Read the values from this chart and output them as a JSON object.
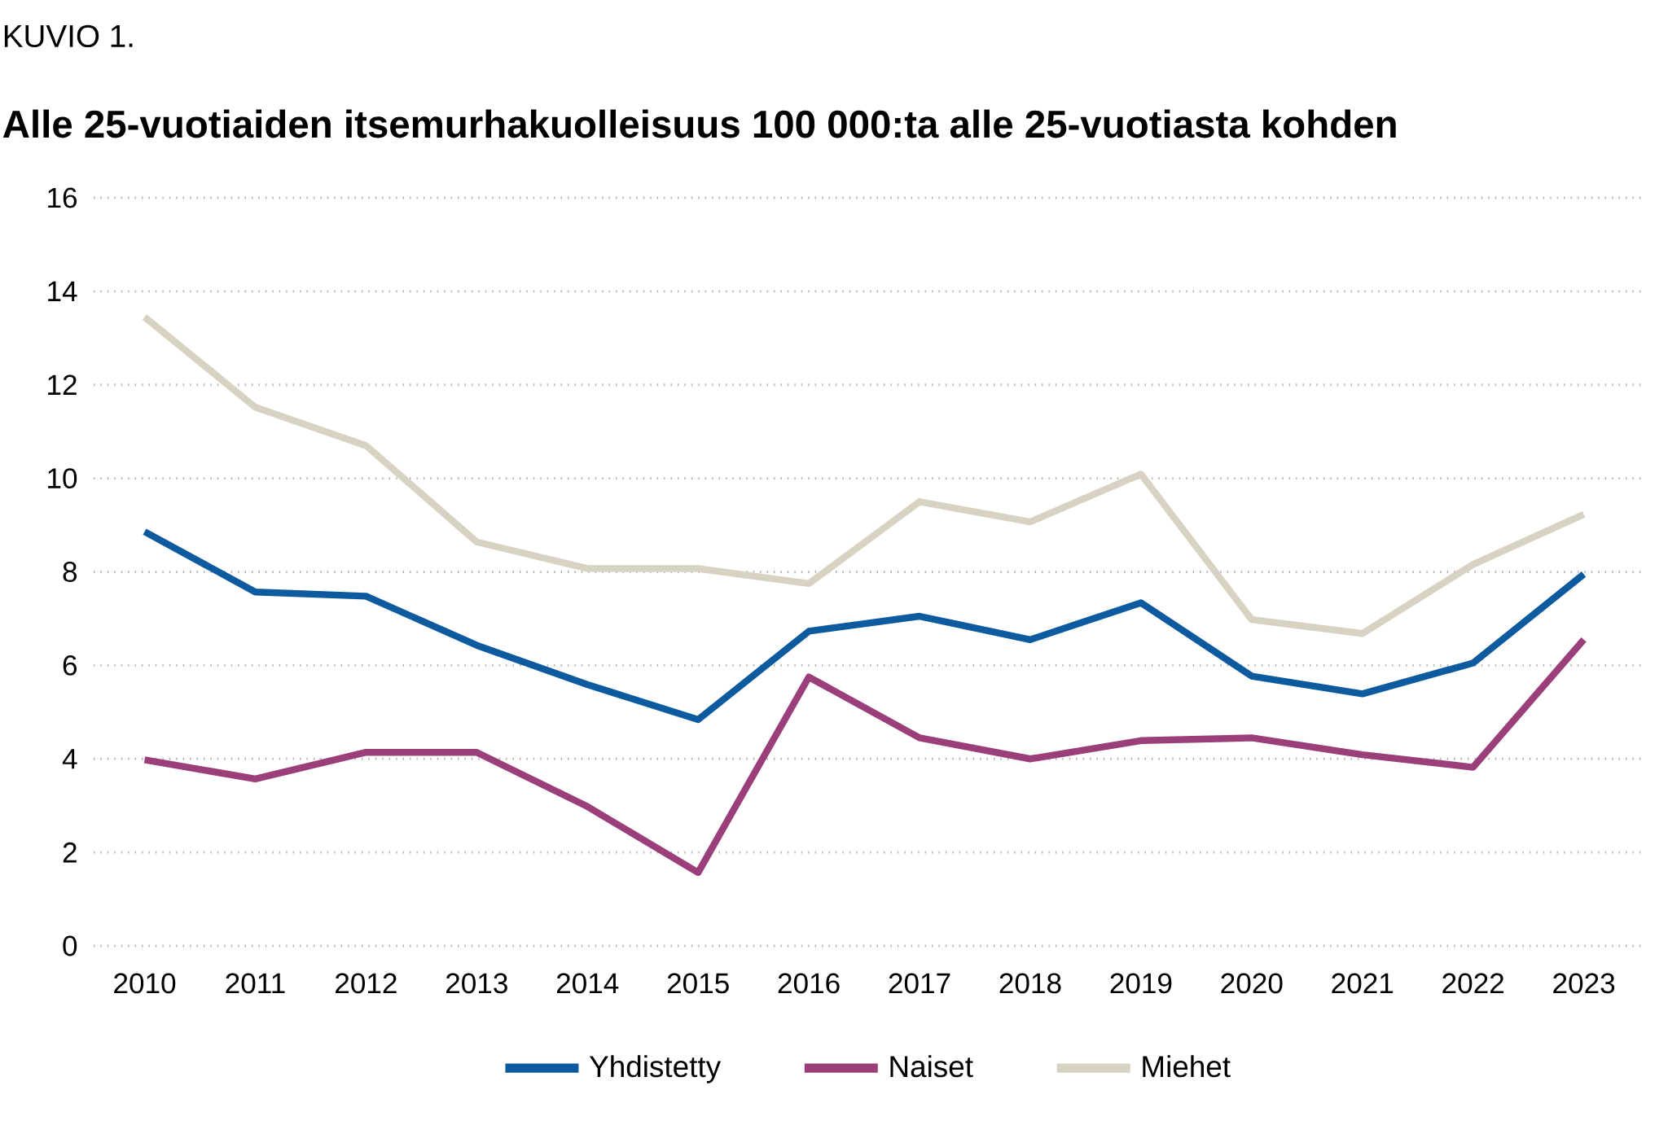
{
  "chart_data": {
    "type": "line",
    "title": "Alle 25-vuotiaiden itsemurhakuolleisuus 100 000:ta alle 25-vuotiasta kohden",
    "annotations": [
      "KUVIO 1."
    ],
    "categories": [
      "2010",
      "2011",
      "2012",
      "2013",
      "2014",
      "2015",
      "2016",
      "2017",
      "2018",
      "2019",
      "2020",
      "2021",
      "2022",
      "2023"
    ],
    "series": [
      {
        "name": "Yhdistetty",
        "color": "#0d5a9e",
        "values": [
          8.86,
          7.57,
          7.48,
          6.43,
          5.59,
          4.84,
          6.73,
          7.05,
          6.55,
          7.34,
          5.77,
          5.39,
          6.05,
          7.95
        ]
      },
      {
        "name": "Naiset",
        "color": "#9b3f7a",
        "values": [
          3.98,
          3.57,
          4.14,
          4.14,
          2.98,
          1.57,
          5.75,
          4.45,
          4.0,
          4.39,
          4.45,
          4.09,
          3.82,
          6.55
        ]
      },
      {
        "name": "Miehet",
        "color": "#d8d2c2",
        "values": [
          13.45,
          11.52,
          10.7,
          8.64,
          8.07,
          8.07,
          7.75,
          9.5,
          9.07,
          10.09,
          6.98,
          6.68,
          8.16,
          9.23
        ]
      }
    ],
    "ylim": [
      0,
      16
    ],
    "yticks": [
      0,
      2,
      4,
      6,
      8,
      10,
      12,
      14,
      16
    ],
    "grid": "y",
    "legend": "bottom"
  }
}
